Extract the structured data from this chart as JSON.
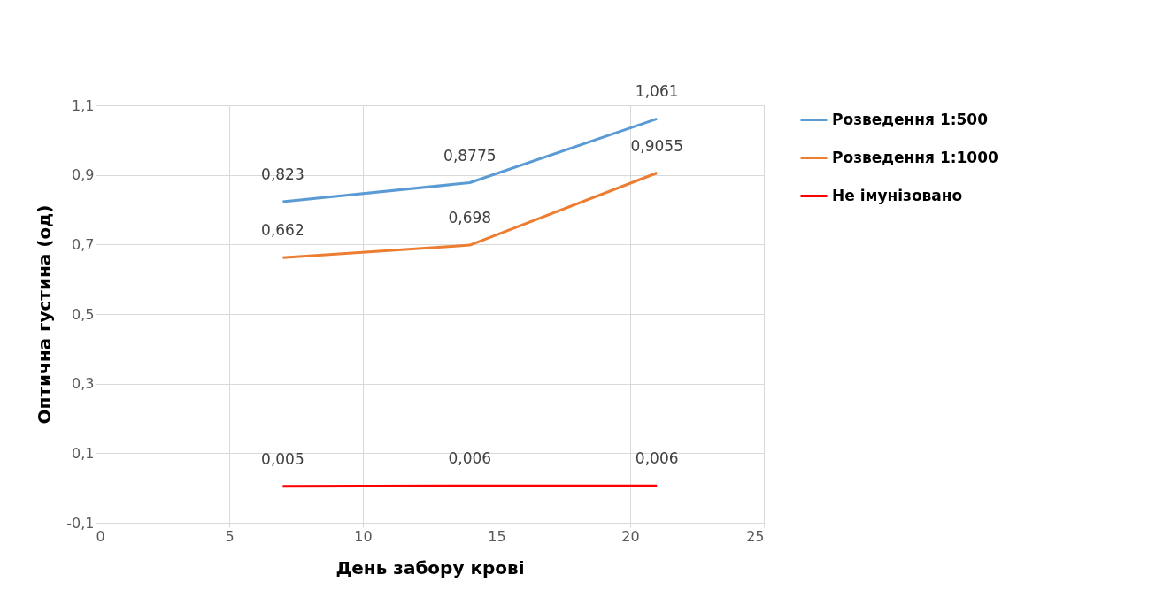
{
  "chart_data": {
    "type": "line",
    "xlabel": "День забору крові",
    "ylabel": "Оптична густина (од)",
    "x": [
      7,
      14,
      21
    ],
    "series": [
      {
        "name": "Розведення 1:500",
        "color": "#5b9bd5",
        "values": [
          0.823,
          0.8775,
          1.061
        ],
        "value_labels": [
          "0,823",
          "0,8775",
          "1,061"
        ]
      },
      {
        "name": "Розведення 1:1000",
        "color": "#ed7d31",
        "values": [
          0.662,
          0.698,
          0.9055
        ],
        "value_labels": [
          "0,662",
          "0,698",
          "0,9055"
        ]
      },
      {
        "name": "Не імунізовано",
        "color": "#ff0000",
        "values": [
          0.005,
          0.006,
          0.006
        ],
        "value_labels": [
          "0,005",
          "0,006",
          "0,006"
        ]
      }
    ],
    "xlim": [
      0,
      25
    ],
    "xticks": [
      0,
      5,
      10,
      15,
      20,
      25
    ],
    "ylim": [
      -0.1,
      1.1
    ],
    "yticks": [
      {
        "value": -0.1,
        "label": "-0,1"
      },
      {
        "value": 0.1,
        "label": "0,1"
      },
      {
        "value": 0.3,
        "label": "0,3"
      },
      {
        "value": 0.5,
        "label": "0,5"
      },
      {
        "value": 0.7,
        "label": "0,7"
      },
      {
        "value": 0.9,
        "label": "0,9"
      },
      {
        "value": 1.1,
        "label": "1,1"
      }
    ],
    "grid": true,
    "legend": "right",
    "marker": "none",
    "line_style": "solid"
  }
}
